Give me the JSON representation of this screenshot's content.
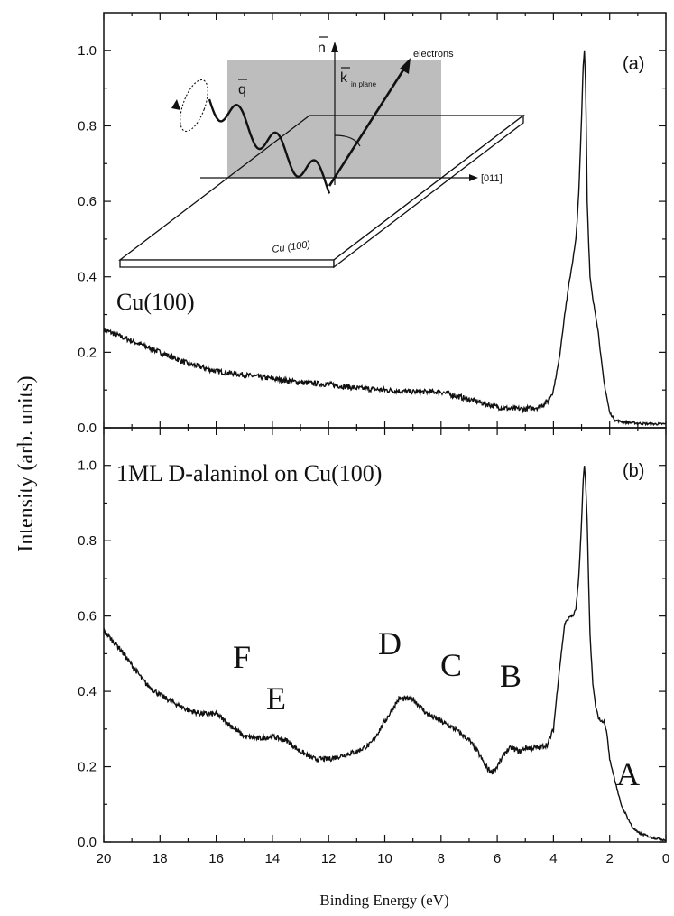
{
  "chart_data": [
    {
      "panel": "(a)",
      "type": "line",
      "sample_label": "Cu(100)",
      "xlim": [
        20,
        0
      ],
      "ylim": [
        0,
        1.1
      ],
      "x": [
        20,
        19,
        18,
        17,
        16,
        15,
        14,
        13,
        12,
        11,
        10,
        9,
        8.5,
        8,
        7.5,
        7,
        6.5,
        6,
        5.5,
        5,
        4.5,
        4.2,
        4.0,
        3.8,
        3.6,
        3.45,
        3.3,
        3.2,
        3.1,
        3.0,
        2.95,
        2.9,
        2.85,
        2.8,
        2.7,
        2.6,
        2.5,
        2.4,
        2.3,
        2.2,
        2.0,
        1.8,
        1.5,
        1.0,
        0.5,
        0
      ],
      "y": [
        0.26,
        0.23,
        0.2,
        0.17,
        0.15,
        0.14,
        0.13,
        0.12,
        0.115,
        0.105,
        0.1,
        0.095,
        0.095,
        0.095,
        0.085,
        0.075,
        0.065,
        0.055,
        0.05,
        0.05,
        0.055,
        0.07,
        0.1,
        0.18,
        0.3,
        0.38,
        0.45,
        0.5,
        0.62,
        0.82,
        0.95,
        1.0,
        0.9,
        0.6,
        0.4,
        0.34,
        0.3,
        0.25,
        0.18,
        0.12,
        0.04,
        0.02,
        0.015,
        0.012,
        0.01,
        0.01
      ]
    },
    {
      "panel": "(b)",
      "type": "line",
      "sample_label": "1ML D-alaninol on Cu(100)",
      "xlim": [
        20,
        0
      ],
      "ylim": [
        0,
        1.1
      ],
      "x": [
        20,
        19.5,
        19,
        18.5,
        18,
        17.5,
        17,
        16.5,
        16,
        15.5,
        15,
        14.5,
        14,
        13.5,
        13,
        12.5,
        12,
        11.5,
        11,
        10.5,
        10,
        9.5,
        9,
        8.5,
        8,
        7.5,
        7,
        6.7,
        6.4,
        6.2,
        6,
        5.7,
        5.5,
        5.2,
        5,
        4.5,
        4.2,
        4,
        3.8,
        3.6,
        3.4,
        3.3,
        3.2,
        3.1,
        3.0,
        2.95,
        2.9,
        2.85,
        2.8,
        2.7,
        2.6,
        2.5,
        2.4,
        2.3,
        2.2,
        2.1,
        2.0,
        1.8,
        1.6,
        1.4,
        1.2,
        1.0,
        0.5,
        0
      ],
      "y": [
        0.56,
        0.52,
        0.47,
        0.42,
        0.39,
        0.37,
        0.35,
        0.34,
        0.34,
        0.31,
        0.28,
        0.275,
        0.28,
        0.27,
        0.24,
        0.22,
        0.22,
        0.23,
        0.24,
        0.26,
        0.32,
        0.38,
        0.38,
        0.34,
        0.32,
        0.3,
        0.27,
        0.24,
        0.2,
        0.185,
        0.2,
        0.24,
        0.25,
        0.24,
        0.25,
        0.25,
        0.26,
        0.3,
        0.45,
        0.58,
        0.6,
        0.6,
        0.62,
        0.7,
        0.85,
        0.95,
        1.0,
        0.95,
        0.85,
        0.55,
        0.42,
        0.36,
        0.33,
        0.32,
        0.32,
        0.29,
        0.22,
        0.16,
        0.1,
        0.07,
        0.04,
        0.025,
        0.012,
        0.005
      ]
    }
  ],
  "axes": {
    "ylabel": "Intensity (arb. units)",
    "xlabel": "Binding Energy (eV)",
    "x_ticks": [
      "20",
      "18",
      "16",
      "14",
      "12",
      "10",
      "8",
      "6",
      "4",
      "2",
      "0"
    ],
    "y_ticks": [
      "0.0",
      "0.2",
      "0.4",
      "0.6",
      "0.8",
      "1.0"
    ]
  },
  "peak_labels": [
    "F",
    "E",
    "D",
    "C",
    "B",
    "A"
  ],
  "inset": {
    "normal_label": "n",
    "wave_label": "q",
    "k_label": "k",
    "k_subscript": "in plane",
    "electrons_label": "electrons",
    "direction_label": "[011]",
    "surface_label": "Cu (100)"
  },
  "colors": {
    "line": "#111111",
    "plane": "#bdbdbd"
  }
}
